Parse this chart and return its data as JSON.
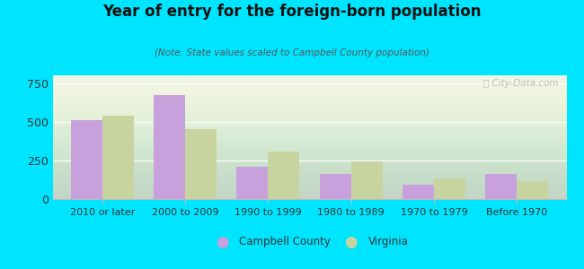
{
  "title": "Year of entry for the foreign-born population",
  "subtitle": "(Note: State values scaled to Campbell County population)",
  "categories": [
    "2010 or later",
    "2000 to 2009",
    "1990 to 1999",
    "1980 to 1989",
    "1970 to 1979",
    "Before 1970"
  ],
  "campbell_county": [
    510,
    670,
    210,
    165,
    95,
    160
  ],
  "virginia": [
    540,
    450,
    310,
    245,
    135,
    115
  ],
  "campbell_color": "#c8a0dc",
  "virginia_color": "#c8d4a0",
  "background_outer": "#00e5ff",
  "background_chart": "#eef4e8",
  "ylim": [
    0,
    800
  ],
  "yticks": [
    0,
    250,
    500,
    750
  ],
  "bar_width": 0.38,
  "watermark": "ⓘ City-Data.com"
}
